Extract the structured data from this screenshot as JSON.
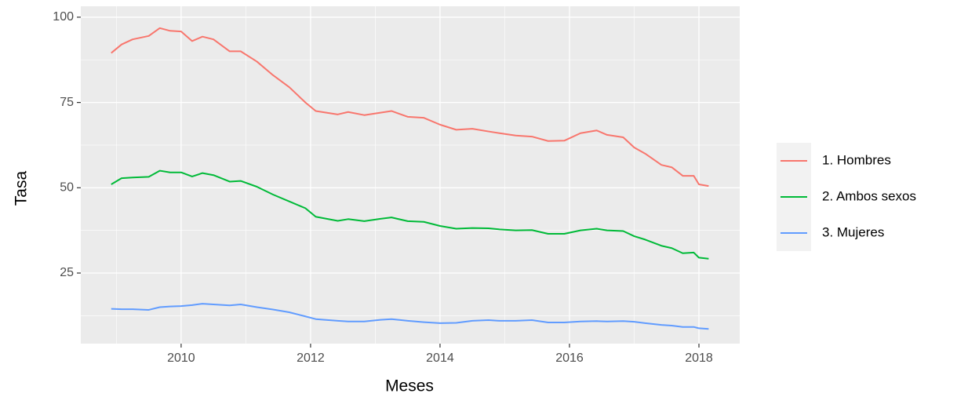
{
  "chart_data": {
    "type": "line",
    "x_label": "Meses",
    "y_label": "Tasa",
    "x": [
      2008.92,
      2009.08,
      2009.25,
      2009.5,
      2009.67,
      2009.83,
      2010,
      2010.17,
      2010.33,
      2010.5,
      2010.75,
      2010.92,
      2011.17,
      2011.42,
      2011.67,
      2011.92,
      2012.08,
      2012.42,
      2012.58,
      2012.83,
      2013.08,
      2013.25,
      2013.5,
      2013.75,
      2014,
      2014.25,
      2014.5,
      2014.75,
      2014.92,
      2015.17,
      2015.42,
      2015.67,
      2015.92,
      2016.17,
      2016.42,
      2016.58,
      2016.83,
      2017,
      2017.17,
      2017.42,
      2017.58,
      2017.75,
      2017.92,
      2018.0,
      2018.15
    ],
    "series": [
      {
        "name": "1. Hombres",
        "color": "#F8766D",
        "values": [
          89.5,
          92,
          93.5,
          94.5,
          96.8,
          96,
          95.8,
          93,
          94.3,
          93.5,
          90,
          90,
          87,
          83,
          79.5,
          75,
          72.5,
          71.5,
          72.2,
          71.3,
          72,
          72.5,
          70.8,
          70.5,
          68.5,
          67,
          67.3,
          66.5,
          66,
          65.3,
          65,
          63.7,
          63.8,
          66,
          66.8,
          65.5,
          64.8,
          61.8,
          60,
          56.7,
          56,
          53.5,
          53.5,
          51,
          50.5
        ]
      },
      {
        "name": "2. Ambos sexos",
        "color": "#00BA38",
        "values": [
          51,
          52.8,
          53,
          53.2,
          55,
          54.5,
          54.5,
          53.3,
          54.3,
          53.7,
          51.8,
          52,
          50.3,
          48,
          46,
          44,
          41.5,
          40.3,
          40.8,
          40.2,
          40.9,
          41.3,
          40.2,
          40,
          38.8,
          38,
          38.2,
          38.1,
          37.8,
          37.5,
          37.6,
          36.5,
          36.5,
          37.5,
          38,
          37.5,
          37.3,
          35.8,
          34.8,
          33,
          32.3,
          30.8,
          31,
          29.5,
          29.2
        ]
      },
      {
        "name": "3. Mujeres",
        "color": "#619CFF",
        "values": [
          14.5,
          14.4,
          14.4,
          14.2,
          15,
          15.2,
          15.3,
          15.6,
          16,
          15.8,
          15.5,
          15.8,
          15,
          14.3,
          13.5,
          12.3,
          11.5,
          11,
          10.8,
          10.8,
          11.3,
          11.5,
          11,
          10.6,
          10.3,
          10.4,
          11,
          11.2,
          11,
          11,
          11.2,
          10.5,
          10.5,
          10.8,
          10.9,
          10.8,
          10.9,
          10.7,
          10.3,
          9.8,
          9.6,
          9.2,
          9.2,
          8.8,
          8.6
        ]
      }
    ],
    "xlim": [
      2008.45,
      2018.63
    ],
    "xticks": [
      2010,
      2012,
      2014,
      2016,
      2018
    ],
    "ylim": [
      4.3,
      103.2
    ],
    "yticks": [
      25,
      50,
      75,
      100
    ],
    "grid": true,
    "legend_position": "right"
  }
}
